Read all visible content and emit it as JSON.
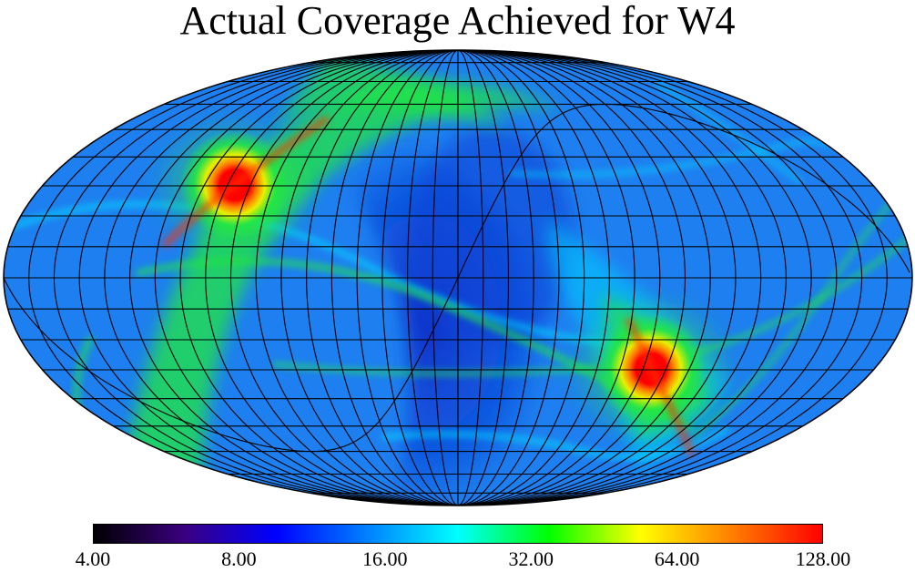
{
  "title": "Actual Coverage Achieved for W4",
  "projection": "mollweide",
  "colorbar": {
    "scale": "log",
    "stops": [
      "#000000",
      "#3a0080",
      "#0000ff",
      "#0080ff",
      "#00ffff",
      "#00ff00",
      "#ffff00",
      "#ff8000",
      "#ff0000"
    ],
    "min": 4.0,
    "max": 128.0,
    "ticks": [
      "4.00",
      "8.00",
      "16.00",
      "32.00",
      "64.00",
      "128.00"
    ]
  },
  "colors": {
    "background": "#1e7ff0",
    "deep": "#0a3fd6",
    "band": "#00d2ff",
    "green": "#22e840",
    "yellow": "#e8f000",
    "orange": "#ff7a00",
    "hot": "#ff0000",
    "grid": "#000000"
  }
}
